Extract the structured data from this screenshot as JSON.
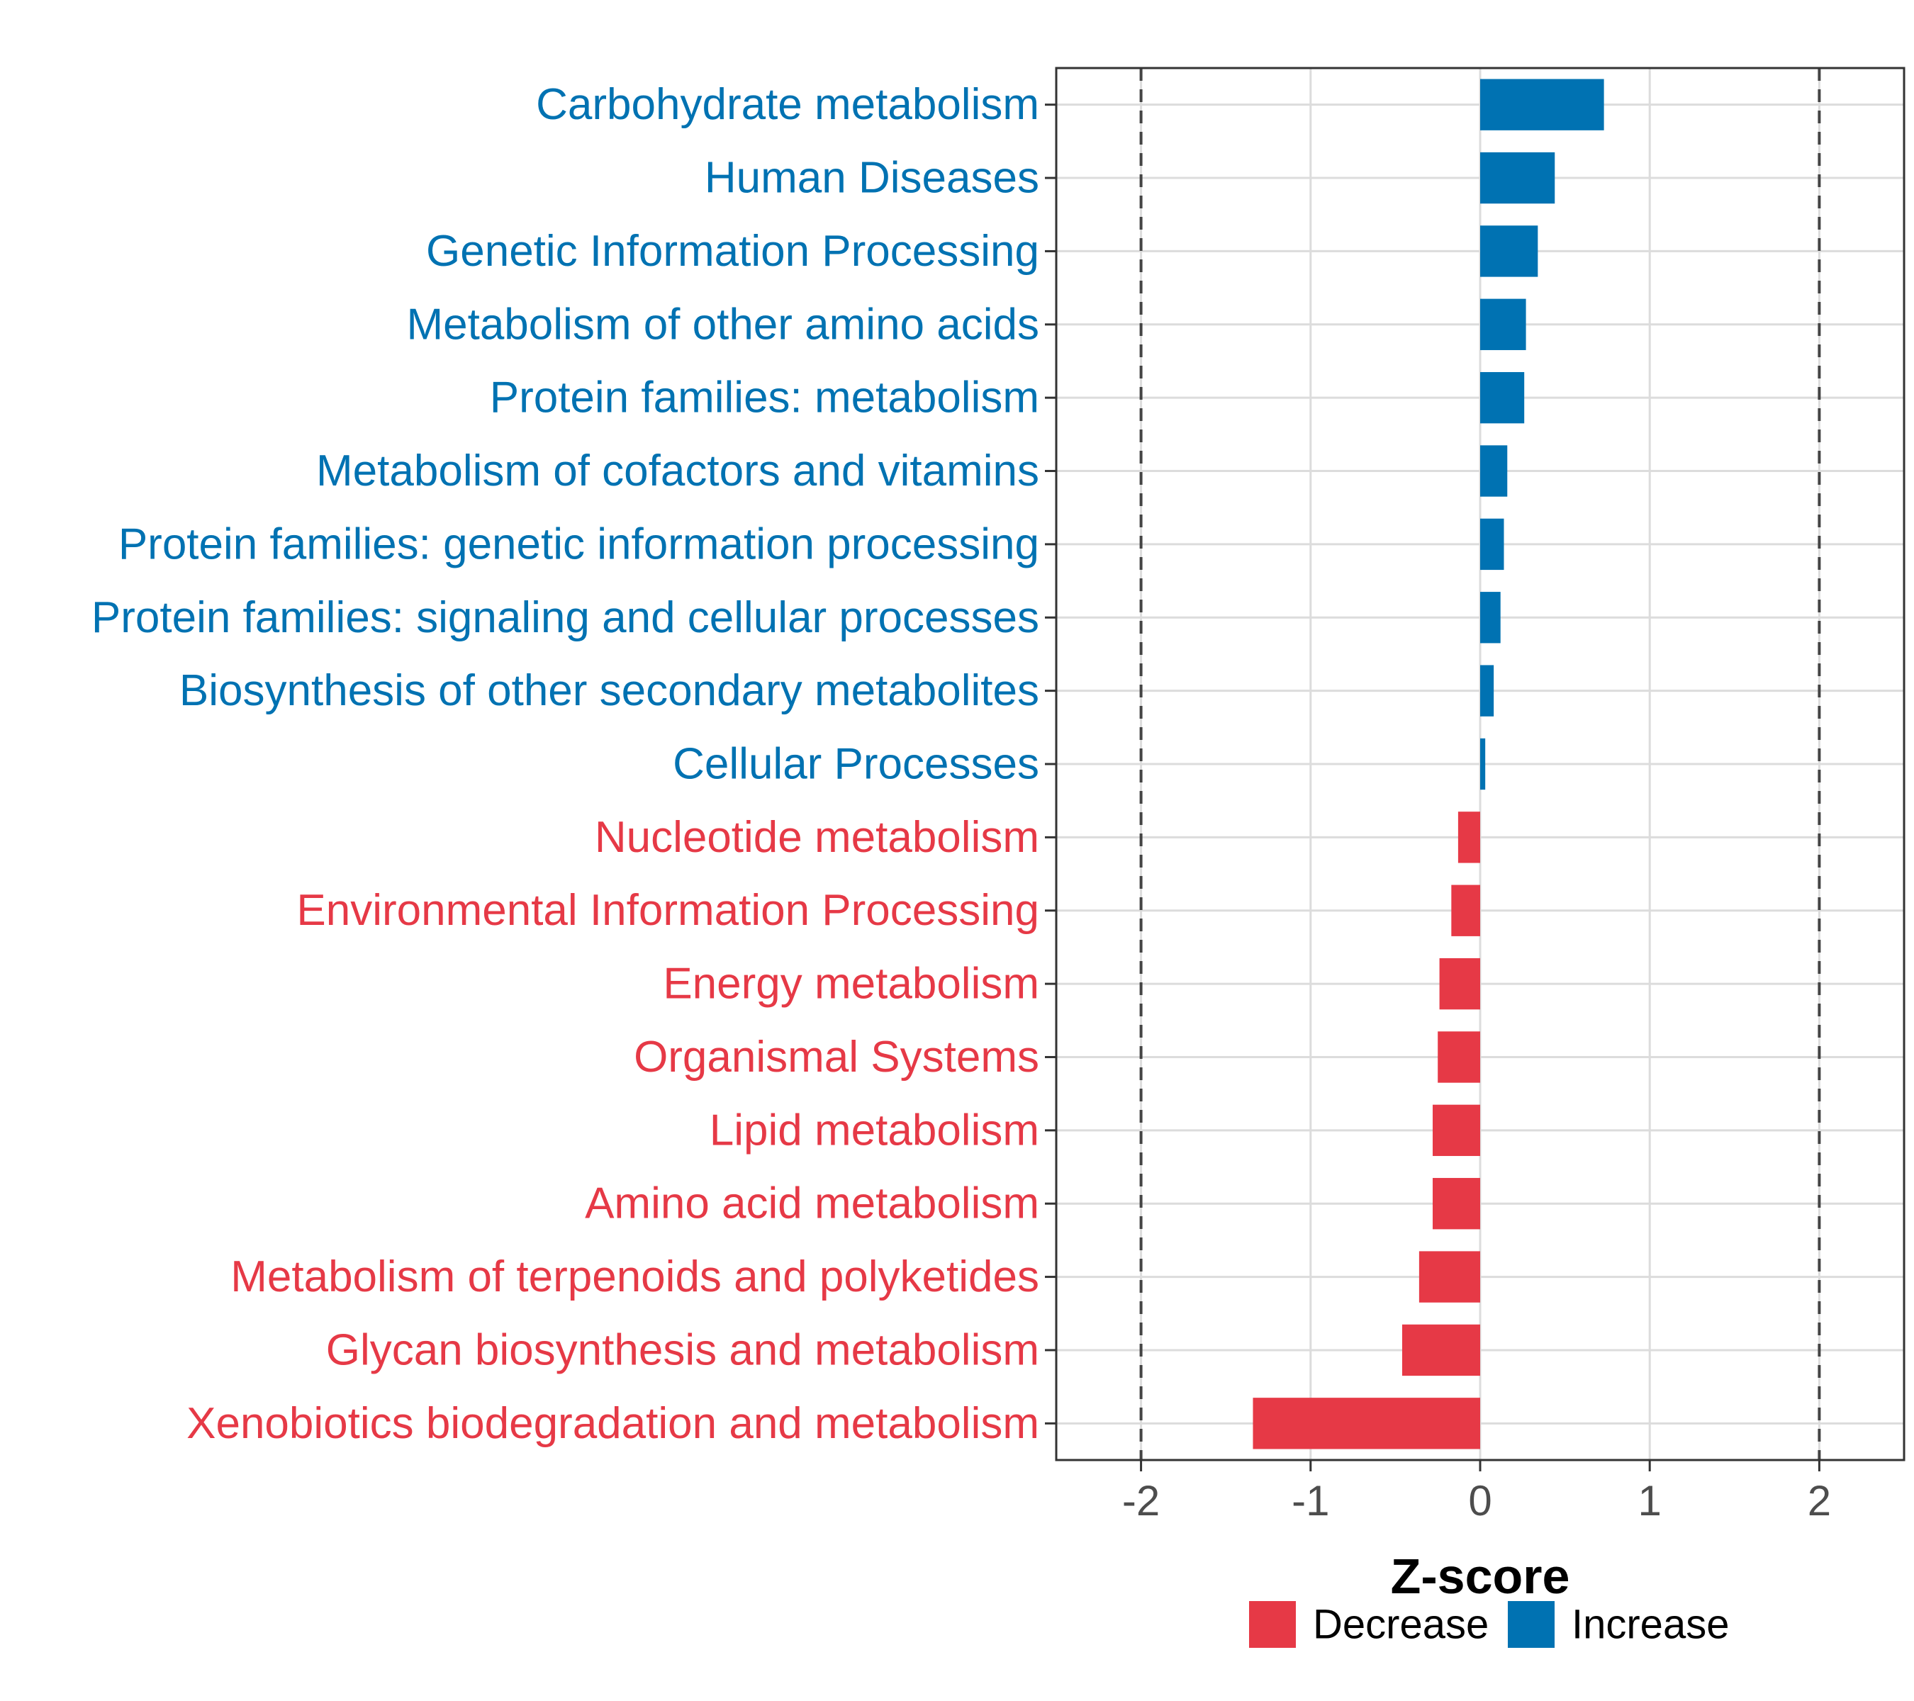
{
  "chart_data": {
    "type": "bar",
    "orientation": "horizontal",
    "title": "",
    "xlabel": "Z-score",
    "ylabel": "",
    "xlim": [
      -2.5,
      2.5
    ],
    "xticks": [
      -2,
      -1,
      0,
      1,
      2
    ],
    "xtick_labels": [
      "-2",
      "-1",
      "0",
      "1",
      "2"
    ],
    "reference_lines": [
      -2,
      2
    ],
    "grid": true,
    "colors": {
      "Decrease": "#e63946",
      "Increase": "#0072b2"
    },
    "categories": [
      "Carbohydrate metabolism",
      "Human Diseases",
      "Genetic Information Processing",
      "Metabolism of other amino acids",
      "Protein families: metabolism",
      "Metabolism of cofactors and vitamins",
      "Protein families: genetic information processing",
      "Protein families: signaling and cellular processes",
      "Biosynthesis of other secondary metabolites",
      "Cellular Processes",
      "Nucleotide metabolism",
      "Environmental Information Processing",
      "Energy metabolism",
      "Organismal Systems",
      "Lipid metabolism",
      "Amino acid metabolism",
      "Metabolism of terpenoids and polyketides",
      "Glycan biosynthesis and metabolism",
      "Xenobiotics biodegradation and metabolism"
    ],
    "values": [
      0.73,
      0.44,
      0.34,
      0.27,
      0.26,
      0.16,
      0.14,
      0.12,
      0.08,
      0.03,
      -0.13,
      -0.17,
      -0.24,
      -0.25,
      -0.28,
      -0.28,
      -0.36,
      -0.46,
      -1.34
    ],
    "groups": [
      "Increase",
      "Increase",
      "Increase",
      "Increase",
      "Increase",
      "Increase",
      "Increase",
      "Increase",
      "Increase",
      "Increase",
      "Decrease",
      "Decrease",
      "Decrease",
      "Decrease",
      "Decrease",
      "Decrease",
      "Decrease",
      "Decrease",
      "Decrease"
    ],
    "legend": {
      "position": "bottom",
      "entries": [
        {
          "label": "Decrease",
          "color": "#e63946"
        },
        {
          "label": "Increase",
          "color": "#0072b2"
        }
      ]
    }
  }
}
